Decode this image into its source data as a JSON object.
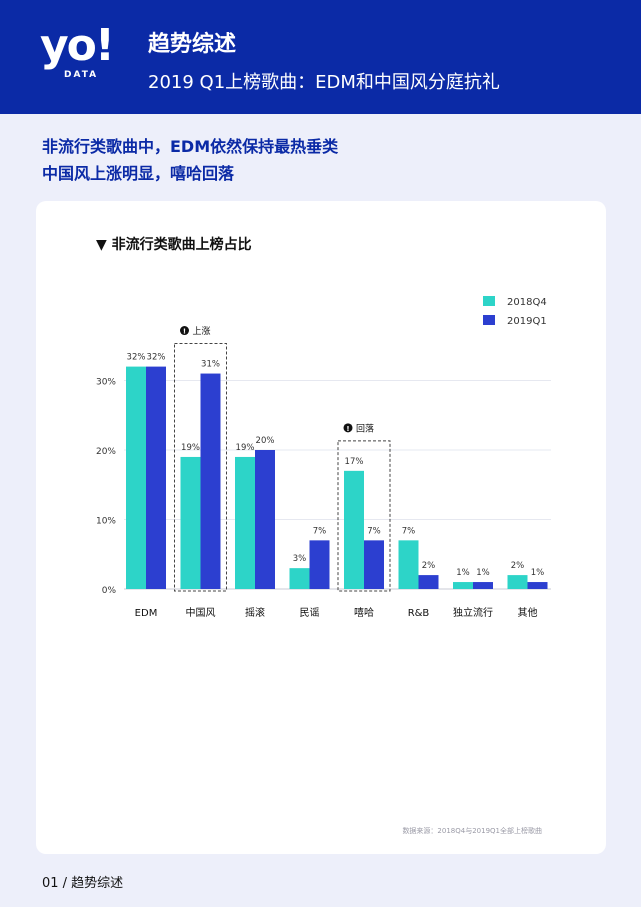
{
  "header": {
    "logo_main": "yo!",
    "logo_sub": "DATA",
    "title": "趋势综述",
    "subtitle": "2019 Q1上榜歌曲：EDM和中国风分庭抗礼"
  },
  "headline": {
    "line1": "非流行类歌曲中，EDM依然保持最热垂类",
    "line2": "中国风上涨明显，嘻哈回落"
  },
  "colors": {
    "brand": "#0b2aa6",
    "series_2018Q4": "#2dd4c8",
    "series_2019Q1": "#2c3fd0"
  },
  "chart_data": {
    "type": "bar",
    "title": "▼ 非流行类歌曲上榜占比",
    "categories": [
      "EDM",
      "中国风",
      "摇滚",
      "民谣",
      "嘻哈",
      "R&B",
      "独立流行",
      "其他"
    ],
    "series": [
      {
        "name": "2018Q4",
        "values": [
          32,
          19,
          19,
          3,
          17,
          7,
          1,
          2
        ],
        "labels": [
          "32%",
          "19%",
          "19%",
          "3%",
          "17%",
          "7%",
          "1%",
          "2%"
        ]
      },
      {
        "name": "2019Q1",
        "values": [
          32,
          31,
          20,
          7,
          7,
          2,
          1,
          1
        ],
        "labels": [
          "32%",
          "31%",
          "20%",
          "7%",
          "7%",
          "2%",
          "1%",
          "1%"
        ]
      }
    ],
    "ylim": [
      0,
      35
    ],
    "yticks": [
      0,
      10,
      20,
      30
    ],
    "ytick_labels": [
      "0%",
      "10%",
      "20%",
      "30%"
    ],
    "legend_position": "top-right",
    "grid": true,
    "annotations": [
      {
        "category": "中国风",
        "text": "上涨"
      },
      {
        "category": "嘻哈",
        "text": "回落"
      }
    ]
  },
  "source": "数据来源：2018Q4与2019Q1全部上榜歌曲",
  "footer": "01 / 趋势综述"
}
